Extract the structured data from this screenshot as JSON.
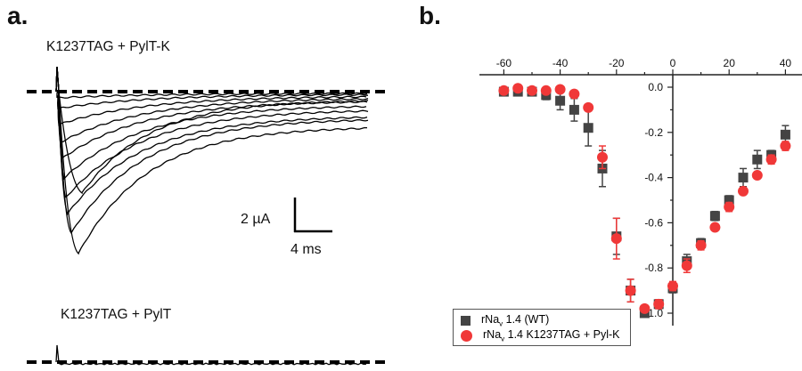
{
  "panel_a": {
    "label": "a.",
    "top_title": "K1237TAG + PylT-K",
    "bottom_title": "K1237TAG + PylT",
    "scale_current": "2 µA",
    "scale_time": "4 ms"
  },
  "panel_b": {
    "label": "b."
  },
  "chart_data": {
    "type": "scatter",
    "title": "",
    "xlabel": "",
    "ylabel": "",
    "xlim": [
      -65,
      43
    ],
    "ylim": [
      -1.05,
      0.05
    ],
    "x_ticks": [
      "-60",
      "-40",
      "-20",
      "0",
      "20",
      "40"
    ],
    "y_ticks": [
      "0.0",
      "-0.2",
      "-0.4",
      "-0.6",
      "-0.8",
      "-1.0"
    ],
    "x_axis_position": "top",
    "y_axis_crosses_at_x": 0,
    "grid": false,
    "legend_placement": "bottom-left",
    "x": [
      -60,
      -55,
      -50,
      -45,
      -40,
      -35,
      -30,
      -25,
      -20,
      -15,
      -10,
      -5,
      0,
      5,
      10,
      15,
      20,
      25,
      30,
      35,
      40
    ],
    "series": [
      {
        "name": "rNav 1.4 (WT)",
        "legend_main": "rNa",
        "legend_sub": "v",
        "legend_rest": " 1.4 (WT)",
        "marker": "square",
        "color": "#444444",
        "values": [
          -0.02,
          -0.02,
          -0.02,
          -0.035,
          -0.06,
          -0.1,
          -0.18,
          -0.36,
          -0.66,
          -0.9,
          -1.0,
          -0.96,
          -0.89,
          -0.77,
          -0.69,
          -0.57,
          -0.5,
          -0.4,
          -0.32,
          -0.3,
          -0.21
        ],
        "errors": [
          0.01,
          0.01,
          0.01,
          0.02,
          0.04,
          0.05,
          0.08,
          0.08,
          0.08,
          0.05,
          0.01,
          0.02,
          0.02,
          0.03,
          0.02,
          0.02,
          0.02,
          0.04,
          0.04,
          0.02,
          0.04
        ]
      },
      {
        "name": "rNav 1.4 K1237TAG + Pyl-K",
        "legend_main": "rNa",
        "legend_sub": "v",
        "legend_rest": " 1.4 K1237TAG + Pyl-K",
        "marker": "circle",
        "color": "#f03838",
        "values": [
          -0.015,
          -0.005,
          -0.015,
          -0.015,
          -0.01,
          -0.03,
          -0.09,
          -0.31,
          -0.67,
          -0.9,
          -0.98,
          -0.96,
          -0.88,
          -0.79,
          -0.7,
          -0.62,
          -0.53,
          -0.46,
          -0.39,
          -0.32,
          -0.26
        ],
        "errors": [
          0.01,
          0.01,
          0.01,
          0.01,
          0.01,
          0.01,
          0.01,
          0.05,
          0.09,
          0.05,
          0.01,
          0.02,
          0.02,
          0.03,
          0.02,
          0.01,
          0.02,
          0.01,
          0.01,
          0.02,
          0.02
        ]
      }
    ]
  }
}
